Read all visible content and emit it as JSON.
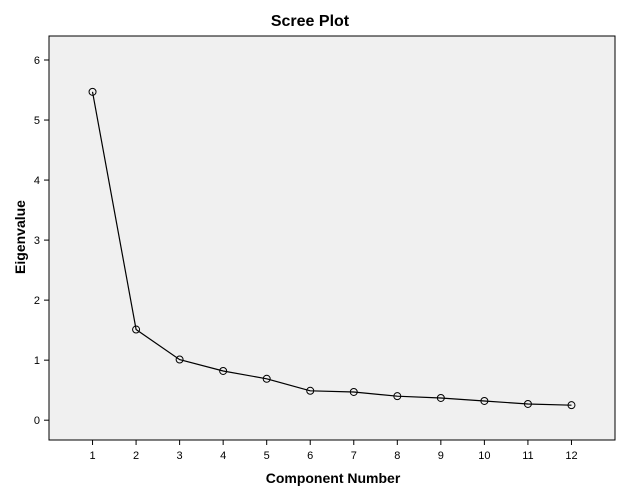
{
  "chart_data": {
    "type": "line",
    "title": "Scree Plot",
    "xlabel": "Component Number",
    "ylabel": "Eigenvalue",
    "x": [
      1,
      2,
      3,
      4,
      5,
      6,
      7,
      8,
      9,
      10,
      11,
      12
    ],
    "series": [
      {
        "values": [
          5.47,
          1.51,
          1.01,
          0.82,
          0.69,
          0.49,
          0.47,
          0.4,
          0.37,
          0.32,
          0.27,
          0.25
        ]
      }
    ],
    "x_ticks": [
      "1",
      "2",
      "3",
      "4",
      "5",
      "6",
      "7",
      "8",
      "9",
      "10",
      "11",
      "12"
    ],
    "y_ticks": [
      0,
      1,
      2,
      3,
      4,
      5,
      6
    ],
    "xlim": [
      0,
      13
    ],
    "ylim": [
      -0.33,
      6.4
    ],
    "grid": false,
    "marker": "open-circle",
    "colors": {
      "plot_background": "#f0f0f0",
      "line": "#000000",
      "frame": "#000000"
    }
  }
}
